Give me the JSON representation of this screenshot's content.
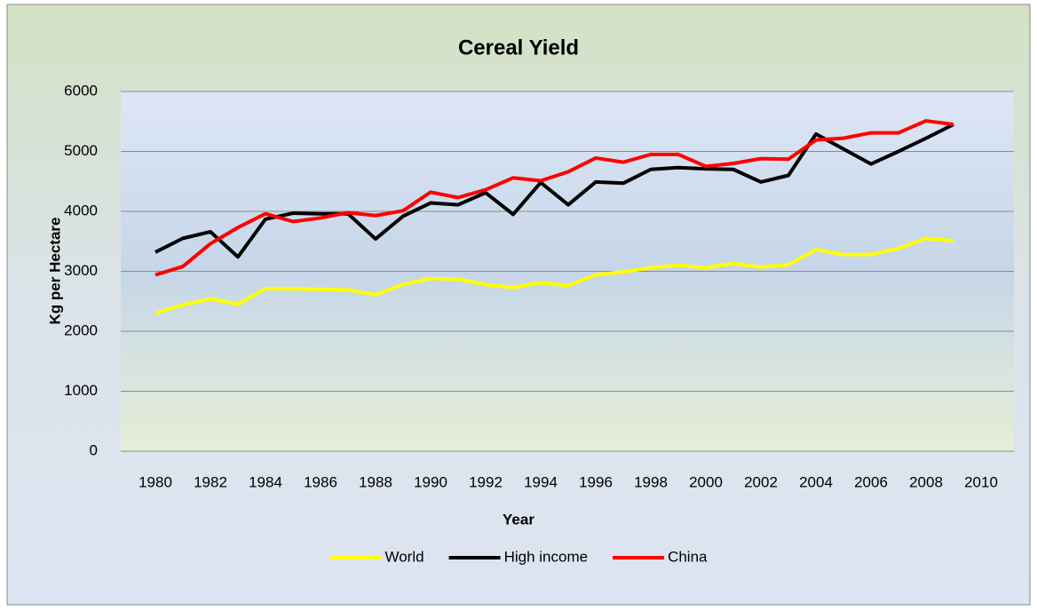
{
  "chart_data": {
    "type": "line",
    "title": "Cereal Yield",
    "xlabel": "Year",
    "ylabel": "Kg per Hectare",
    "x": [
      1980,
      1981,
      1982,
      1983,
      1984,
      1985,
      1986,
      1987,
      1988,
      1989,
      1990,
      1991,
      1992,
      1993,
      1994,
      1995,
      1996,
      1997,
      1998,
      1999,
      2000,
      2001,
      2002,
      2003,
      2004,
      2005,
      2006,
      2007,
      2008,
      2009
    ],
    "series": [
      {
        "name": "World",
        "color": "#ffff00",
        "values": [
          2300,
          2440,
          2540,
          2450,
          2710,
          2710,
          2700,
          2690,
          2610,
          2780,
          2880,
          2870,
          2780,
          2730,
          2810,
          2760,
          2940,
          2990,
          3060,
          3100,
          3060,
          3130,
          3070,
          3110,
          3360,
          3280,
          3280,
          3380,
          3550,
          3510
        ]
      },
      {
        "name": "High income",
        "color": "#000000",
        "values": [
          3320,
          3550,
          3660,
          3240,
          3870,
          3970,
          3960,
          3960,
          3540,
          3920,
          4140,
          4110,
          4310,
          3950,
          4480,
          4110,
          4490,
          4470,
          4700,
          4730,
          4710,
          4700,
          4490,
          4600,
          5290,
          5040,
          4790,
          5000,
          5220,
          5450
        ]
      },
      {
        "name": "China",
        "color": "#ff0000",
        "values": [
          2940,
          3080,
          3460,
          3730,
          3960,
          3830,
          3890,
          3980,
          3930,
          4010,
          4320,
          4230,
          4360,
          4560,
          4510,
          4660,
          4890,
          4820,
          4950,
          4950,
          4750,
          4800,
          4880,
          4870,
          5190,
          5220,
          5310,
          5310,
          5510,
          5450
        ]
      }
    ],
    "xlim": [
      1980,
      2010
    ],
    "xticks": [
      1980,
      1982,
      1984,
      1986,
      1988,
      1990,
      1992,
      1994,
      1996,
      1998,
      2000,
      2002,
      2004,
      2006,
      2008,
      2010
    ],
    "ylim": [
      0,
      6000
    ],
    "yticks": [
      0,
      1000,
      2000,
      3000,
      4000,
      5000,
      6000
    ],
    "grid": true,
    "legend": "bottom"
  }
}
